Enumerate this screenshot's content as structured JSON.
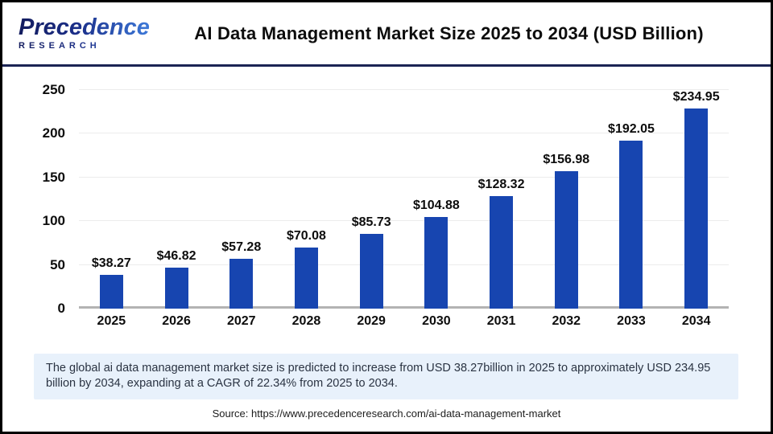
{
  "header": {
    "logo_line1": "Precedence",
    "logo_line2": "RESEARCH",
    "title": "AI Data Management Market Size 2025 to 2034 (USD Billion)"
  },
  "chart_data": {
    "type": "bar",
    "title": "AI Data Management Market Size 2025 to 2034 (USD Billion)",
    "categories": [
      "2025",
      "2026",
      "2027",
      "2028",
      "2029",
      "2030",
      "2031",
      "2032",
      "2033",
      "2034"
    ],
    "values": [
      38.27,
      46.82,
      57.28,
      70.08,
      85.73,
      104.88,
      128.32,
      156.98,
      192.05,
      234.95
    ],
    "value_labels": [
      "$38.27",
      "$46.82",
      "$57.28",
      "$70.08",
      "$85.73",
      "$104.88",
      "$128.32",
      "$156.98",
      "$192.05",
      "$234.95"
    ],
    "unit": "USD Billion",
    "ylim": [
      0,
      250
    ],
    "yticks": [
      0,
      50,
      100,
      150,
      200,
      250
    ],
    "grid": true,
    "legend": false,
    "bar_color": "#1745b0"
  },
  "footer": {
    "summary": "The global ai data management market size is predicted to increase from USD 38.27billion in 2025 to approximately USD 234.95 billion by 2034, expanding at a CAGR of 22.34% from 2025 to 2034.",
    "source": "Source: https://www.precedenceresearch.com/ai-data-management-market"
  },
  "colors": {
    "bar": "#1745b0",
    "outer_border": "#000000",
    "header_rule": "#1b2454",
    "gridline": "#ececec",
    "axis_baseline": "#b3b3b3",
    "summary_bg": "#e8f1fb",
    "logo_navy": "#131c5e",
    "logo_blue": "#3e7bdb"
  }
}
